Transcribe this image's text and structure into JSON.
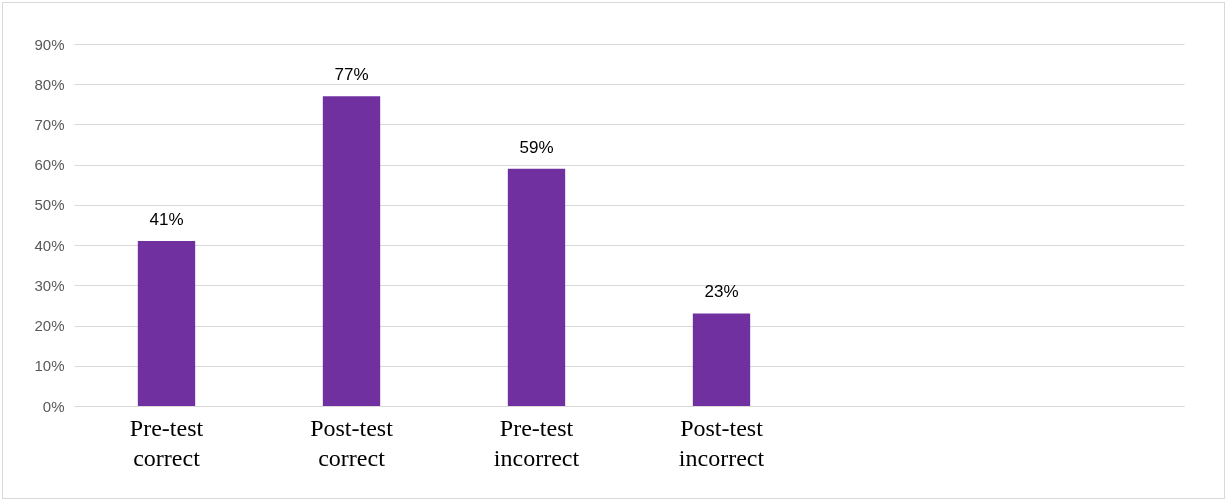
{
  "chart_data": {
    "type": "bar",
    "categories": [
      "Pre-test correct",
      "Post-test correct",
      "Pre-test incorrect",
      "Post-test incorrect",
      null,
      null
    ],
    "values": [
      41,
      77,
      59,
      23,
      null,
      null
    ],
    "value_labels": [
      "41%",
      "77%",
      "59%",
      "23%",
      null,
      null
    ],
    "color": "#7030a0",
    "ylim": [
      0,
      90
    ],
    "yticks": [
      {
        "value": 0,
        "label": "0%"
      },
      {
        "value": 10,
        "label": "10%"
      },
      {
        "value": 20,
        "label": "20%"
      },
      {
        "value": 30,
        "label": "30%"
      },
      {
        "value": 40,
        "label": "40%"
      },
      {
        "value": 50,
        "label": "50%"
      },
      {
        "value": 60,
        "label": "60%"
      },
      {
        "value": 70,
        "label": "70%"
      },
      {
        "value": 80,
        "label": "80%"
      },
      {
        "value": 90,
        "label": "90%"
      }
    ],
    "grid": "y"
  }
}
